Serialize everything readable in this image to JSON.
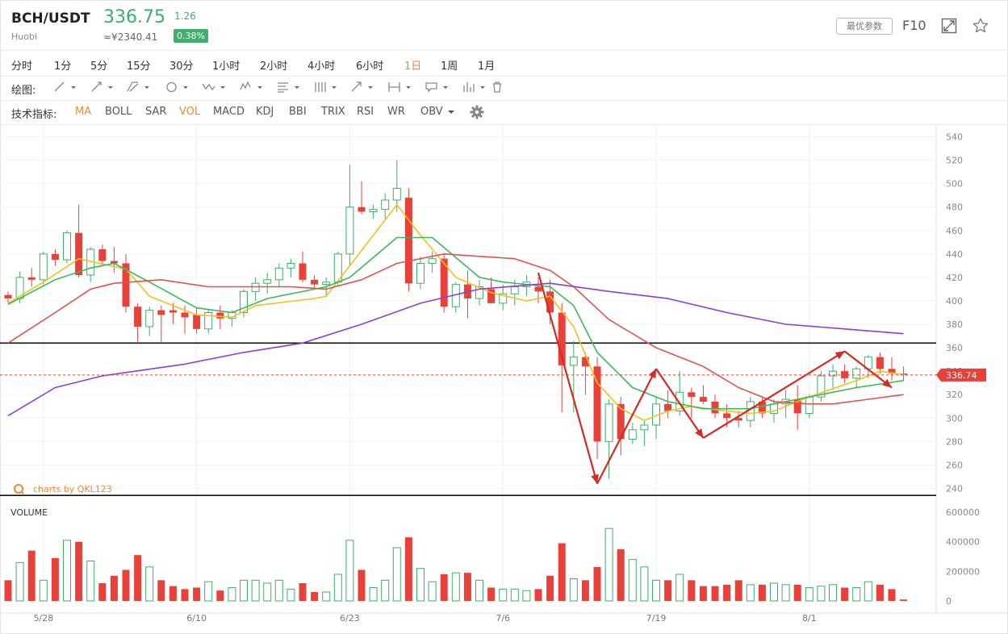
{
  "header": {
    "pair": "BCH/USDT",
    "exchange": "Huobi",
    "price": "336.75",
    "price_cny": "≈¥2340.41",
    "change": "1.26",
    "change_pct": "0.38%",
    "opt_button": "最优参数",
    "f10": "F10",
    "colors": {
      "up": "#3daf6a",
      "accent": "#e88a3b"
    }
  },
  "timeframes": {
    "items": [
      "分时",
      "1分",
      "5分",
      "15分",
      "30分",
      "1小时",
      "2小时",
      "4小时",
      "6小时",
      "1日",
      "1周",
      "1月"
    ],
    "active": "1日"
  },
  "drawing": {
    "label": "绘图:",
    "tools": [
      "line-tool-icon",
      "ray-tool-icon",
      "channel-tool-icon",
      "ellipse-tool-icon",
      "wave-tool-icon",
      "pattern-tool-icon",
      "fib-tool-icon",
      "gann-tool-icon",
      "arrow-tool-icon",
      "range-tool-icon",
      "note-tool-icon",
      "histogram-tool-icon",
      "trash-icon"
    ]
  },
  "indicators": {
    "label": "技术指标:",
    "items": [
      "MA",
      "BOLL",
      "SAR",
      "VOL",
      "MACD",
      "KDJ",
      "BBI",
      "TRIX",
      "RSI",
      "WR",
      "OBV"
    ],
    "active": [
      "MA",
      "VOL"
    ]
  },
  "chart_data": {
    "type": "candlestick",
    "watermark": "charts by QKL123",
    "volume_label": "VOLUME",
    "last_price_label": "336.74",
    "price_axis": {
      "min": 230,
      "max": 550,
      "ticks": [
        240,
        260,
        280,
        300,
        320,
        340,
        360,
        380,
        400,
        420,
        440,
        460,
        480,
        500,
        520,
        540
      ]
    },
    "volume_axis": {
      "min": 0,
      "max": 600000,
      "ticks": [
        0,
        200000,
        400000,
        600000
      ],
      "tick_labels": [
        "0",
        "200000",
        "400000",
        "600000"
      ]
    },
    "x_ticks": [
      {
        "index": 3,
        "label": "5/28"
      },
      {
        "index": 16,
        "label": "6/10"
      },
      {
        "index": 29,
        "label": "6/23"
      },
      {
        "index": 42,
        "label": "7/6"
      },
      {
        "index": 55,
        "label": "7/19"
      },
      {
        "index": 68,
        "label": "8/1"
      }
    ],
    "horizontal_lines": [
      364,
      234
    ],
    "candles": [
      [
        405,
        408,
        398,
        402,
        140000
      ],
      [
        402,
        425,
        398,
        420,
        260000
      ],
      [
        420,
        428,
        412,
        418,
        340000
      ],
      [
        418,
        442,
        414,
        440,
        140000
      ],
      [
        440,
        444,
        430,
        435,
        290000
      ],
      [
        435,
        460,
        432,
        458,
        410000
      ],
      [
        458,
        482,
        420,
        422,
        400000
      ],
      [
        422,
        446,
        416,
        444,
        270000
      ],
      [
        444,
        448,
        430,
        434,
        120000
      ],
      [
        434,
        446,
        424,
        432,
        170000
      ],
      [
        432,
        440,
        390,
        395,
        210000
      ],
      [
        395,
        398,
        365,
        378,
        310000
      ],
      [
        378,
        395,
        370,
        392,
        230000
      ],
      [
        392,
        396,
        365,
        388,
        140000
      ],
      [
        392,
        398,
        380,
        390,
        100000
      ],
      [
        390,
        396,
        372,
        386,
        80000
      ],
      [
        388,
        394,
        372,
        376,
        90000
      ],
      [
        376,
        392,
        372,
        390,
        130000
      ],
      [
        390,
        396,
        376,
        385,
        70000
      ],
      [
        385,
        392,
        378,
        390,
        90000
      ],
      [
        390,
        410,
        386,
        408,
        140000
      ],
      [
        408,
        420,
        400,
        415,
        140000
      ],
      [
        415,
        424,
        406,
        418,
        120000
      ],
      [
        418,
        432,
        412,
        428,
        140000
      ],
      [
        428,
        436,
        420,
        432,
        80000
      ],
      [
        432,
        442,
        416,
        418,
        120000
      ],
      [
        418,
        422,
        410,
        414,
        60000
      ],
      [
        414,
        420,
        404,
        416,
        60000
      ],
      [
        416,
        442,
        412,
        440,
        180000
      ],
      [
        440,
        516,
        430,
        480,
        410000
      ],
      [
        480,
        502,
        474,
        476,
        210000
      ],
      [
        476,
        482,
        470,
        478,
        90000
      ],
      [
        478,
        492,
        470,
        486,
        140000
      ],
      [
        486,
        520,
        476,
        496,
        360000
      ],
      [
        488,
        496,
        408,
        415,
        430000
      ],
      [
        415,
        438,
        410,
        432,
        220000
      ],
      [
        432,
        442,
        424,
        436,
        130000
      ],
      [
        436,
        440,
        390,
        395,
        180000
      ],
      [
        395,
        416,
        390,
        414,
        190000
      ],
      [
        414,
        426,
        385,
        402,
        190000
      ],
      [
        402,
        418,
        396,
        412,
        140000
      ],
      [
        410,
        420,
        398,
        398,
        90000
      ],
      [
        398,
        414,
        392,
        406,
        80000
      ],
      [
        406,
        418,
        396,
        412,
        80000
      ],
      [
        412,
        422,
        404,
        416,
        70000
      ],
      [
        412,
        420,
        398,
        408,
        80000
      ],
      [
        408,
        418,
        380,
        390,
        170000
      ],
      [
        390,
        398,
        305,
        345,
        390000
      ],
      [
        345,
        366,
        305,
        352,
        150000
      ],
      [
        352,
        356,
        320,
        344,
        140000
      ],
      [
        344,
        352,
        265,
        280,
        230000
      ],
      [
        280,
        316,
        248,
        312,
        490000
      ],
      [
        312,
        318,
        268,
        282,
        350000
      ],
      [
        282,
        296,
        278,
        290,
        280000
      ],
      [
        290,
        298,
        276,
        294,
        230000
      ],
      [
        294,
        318,
        282,
        312,
        140000
      ],
      [
        312,
        324,
        300,
        306,
        140000
      ],
      [
        306,
        340,
        302,
        322,
        180000
      ],
      [
        322,
        326,
        300,
        318,
        140000
      ],
      [
        318,
        328,
        312,
        314,
        100000
      ],
      [
        314,
        320,
        300,
        304,
        100000
      ],
      [
        304,
        312,
        292,
        300,
        110000
      ],
      [
        300,
        306,
        292,
        298,
        140000
      ],
      [
        298,
        318,
        292,
        314,
        110000
      ],
      [
        314,
        318,
        300,
        304,
        110000
      ],
      [
        304,
        316,
        296,
        312,
        120000
      ],
      [
        312,
        324,
        300,
        316,
        110000
      ],
      [
        316,
        328,
        290,
        304,
        110000
      ],
      [
        304,
        320,
        300,
        318,
        90000
      ],
      [
        318,
        340,
        314,
        336,
        100000
      ],
      [
        336,
        346,
        324,
        340,
        110000
      ],
      [
        340,
        346,
        330,
        334,
        90000
      ],
      [
        334,
        344,
        326,
        342,
        90000
      ],
      [
        342,
        354,
        334,
        352,
        130000
      ],
      [
        352,
        356,
        338,
        342,
        110000
      ],
      [
        342,
        352,
        332,
        338,
        80000
      ],
      [
        338,
        344,
        332,
        337,
        10000
      ]
    ],
    "ma_lines": [
      {
        "name": "MA5",
        "color": "#f2c11b",
        "values": [
          [
            0,
            398
          ],
          [
            3,
            416
          ],
          [
            6,
            436
          ],
          [
            10,
            427
          ],
          [
            12,
            404
          ],
          [
            16,
            388
          ],
          [
            19,
            386
          ],
          [
            21,
            396
          ],
          [
            26,
            402
          ],
          [
            27,
            404
          ],
          [
            29,
            430
          ],
          [
            33,
            482
          ],
          [
            35,
            456
          ],
          [
            38,
            420
          ],
          [
            41,
            407
          ],
          [
            44,
            400
          ],
          [
            46,
            404
          ],
          [
            48,
            378
          ],
          [
            50,
            330
          ],
          [
            52,
            308
          ],
          [
            54,
            298
          ],
          [
            56,
            306
          ],
          [
            58,
            310
          ],
          [
            61,
            306
          ],
          [
            63,
            304
          ],
          [
            65,
            306
          ],
          [
            68,
            318
          ],
          [
            72,
            332
          ],
          [
            74,
            340
          ],
          [
            76,
            337
          ]
        ]
      },
      {
        "name": "MA10",
        "color": "#3db85a",
        "values": [
          [
            0,
            397
          ],
          [
            4,
            418
          ],
          [
            7,
            428
          ],
          [
            9,
            432
          ],
          [
            12,
            416
          ],
          [
            16,
            394
          ],
          [
            19,
            390
          ],
          [
            22,
            402
          ],
          [
            27,
            412
          ],
          [
            29,
            420
          ],
          [
            33,
            454
          ],
          [
            36,
            454
          ],
          [
            40,
            420
          ],
          [
            42,
            416
          ],
          [
            46,
            412
          ],
          [
            48,
            396
          ],
          [
            50,
            356
          ],
          [
            53,
            326
          ],
          [
            56,
            314
          ],
          [
            59,
            308
          ],
          [
            63,
            308
          ],
          [
            66,
            314
          ],
          [
            69,
            320
          ],
          [
            72,
            326
          ],
          [
            76,
            332
          ]
        ]
      },
      {
        "name": "MA20",
        "color": "#e0534e",
        "values": [
          [
            0,
            364
          ],
          [
            4,
            390
          ],
          [
            7,
            410
          ],
          [
            9,
            415
          ],
          [
            13,
            418
          ],
          [
            17,
            412
          ],
          [
            24,
            412
          ],
          [
            27,
            410
          ],
          [
            30,
            418
          ],
          [
            33,
            432
          ],
          [
            37,
            440
          ],
          [
            40,
            438
          ],
          [
            43,
            436
          ],
          [
            46,
            426
          ],
          [
            48,
            412
          ],
          [
            51,
            384
          ],
          [
            55,
            360
          ],
          [
            59,
            344
          ],
          [
            62,
            326
          ],
          [
            65,
            314
          ],
          [
            68,
            312
          ],
          [
            70,
            312
          ],
          [
            73,
            316
          ],
          [
            76,
            320
          ]
        ]
      },
      {
        "name": "MA60",
        "color": "#8a3fd1",
        "values": [
          [
            0,
            302
          ],
          [
            4,
            326
          ],
          [
            8,
            336
          ],
          [
            15,
            346
          ],
          [
            20,
            356
          ],
          [
            25,
            364
          ],
          [
            30,
            380
          ],
          [
            35,
            398
          ],
          [
            40,
            410
          ],
          [
            46,
            415
          ],
          [
            51,
            408
          ],
          [
            56,
            402
          ],
          [
            61,
            390
          ],
          [
            66,
            380
          ],
          [
            71,
            376
          ],
          [
            76,
            372
          ]
        ]
      }
    ],
    "annotation_arrows": {
      "color": "#d42a23",
      "points": [
        [
          45,
          424
        ],
        [
          50,
          244
        ],
        [
          55,
          342
        ],
        [
          59,
          283
        ],
        [
          71,
          357
        ],
        [
          75,
          326
        ]
      ]
    }
  }
}
